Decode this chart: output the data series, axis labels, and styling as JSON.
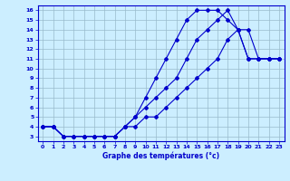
{
  "title": "Graphe des températures (°c)",
  "bg_color": "#cceeff",
  "grid_color": "#99bbcc",
  "line_color": "#0000cc",
  "xlim": [
    -0.5,
    23.5
  ],
  "ylim": [
    2.5,
    16.5
  ],
  "xticks": [
    0,
    1,
    2,
    3,
    4,
    5,
    6,
    7,
    8,
    9,
    10,
    11,
    12,
    13,
    14,
    15,
    16,
    17,
    18,
    19,
    20,
    21,
    22,
    23
  ],
  "yticks": [
    3,
    4,
    5,
    6,
    7,
    8,
    9,
    10,
    11,
    12,
    13,
    14,
    15,
    16
  ],
  "line1_x": [
    0,
    1,
    2,
    3,
    4,
    5,
    6,
    7,
    8,
    9,
    10,
    11,
    12,
    13,
    14,
    15,
    16,
    17,
    18,
    19,
    20,
    21,
    22,
    23
  ],
  "line1_y": [
    4,
    4,
    3,
    3,
    3,
    3,
    3,
    3,
    4,
    5,
    7,
    9,
    11,
    13,
    15,
    16,
    16,
    16,
    15,
    14,
    11,
    11,
    11,
    11
  ],
  "line2_x": [
    0,
    1,
    2,
    3,
    4,
    5,
    6,
    7,
    8,
    9,
    10,
    11,
    12,
    13,
    14,
    15,
    16,
    17,
    18,
    19,
    20,
    21,
    22,
    23
  ],
  "line2_y": [
    4,
    4,
    3,
    3,
    3,
    3,
    3,
    3,
    4,
    5,
    6,
    7,
    8,
    9,
    11,
    13,
    14,
    15,
    16,
    14,
    11,
    11,
    11,
    11
  ],
  "line3_x": [
    0,
    1,
    2,
    3,
    4,
    5,
    6,
    7,
    8,
    9,
    10,
    11,
    12,
    13,
    14,
    15,
    16,
    17,
    18,
    19,
    20,
    21,
    22,
    23
  ],
  "line3_y": [
    4,
    4,
    3,
    3,
    3,
    3,
    3,
    3,
    4,
    4,
    5,
    5,
    6,
    7,
    8,
    9,
    10,
    11,
    13,
    14,
    14,
    11,
    11,
    11
  ]
}
